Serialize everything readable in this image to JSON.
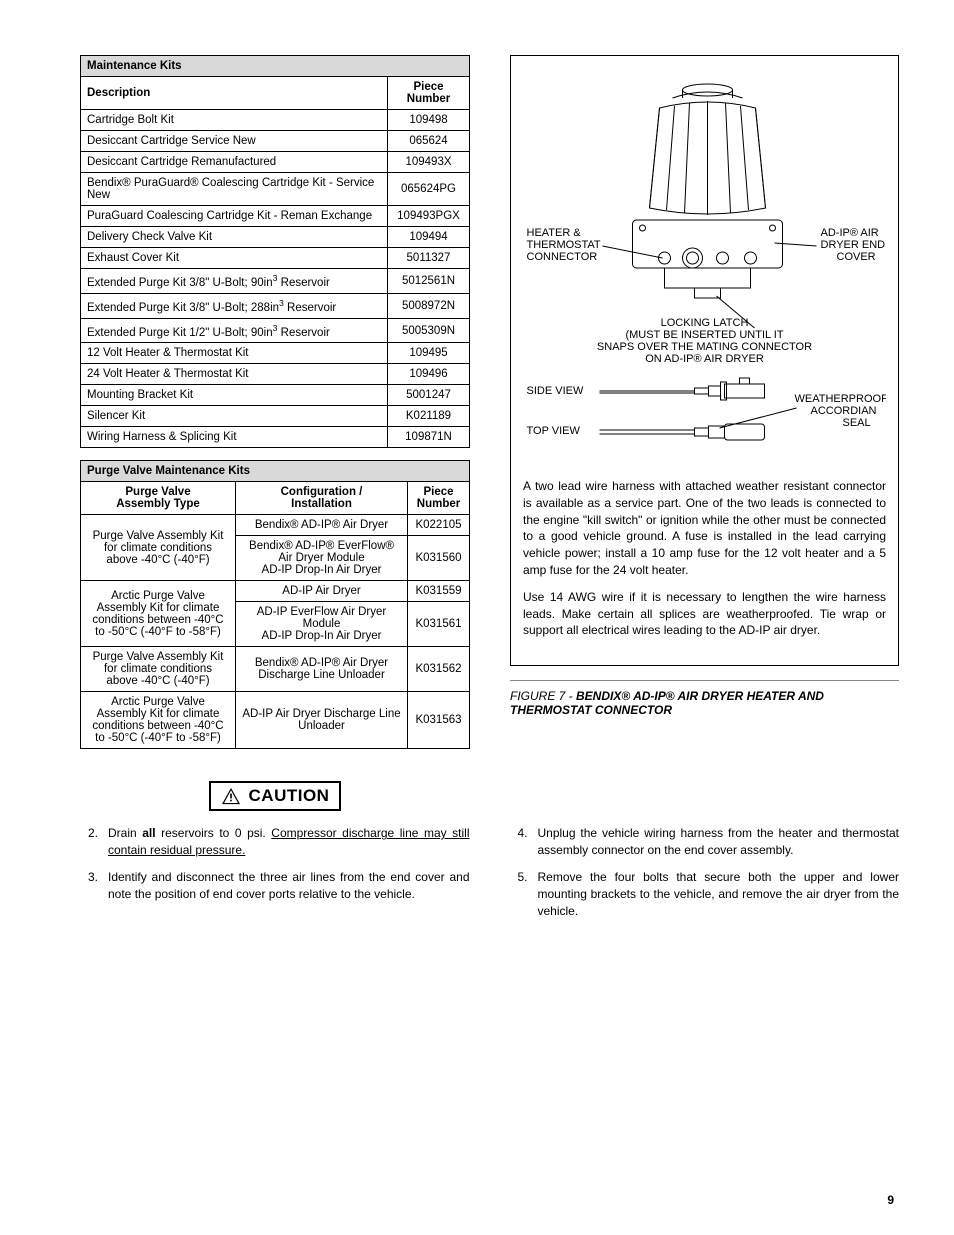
{
  "maintenanceTable": {
    "title": "Maintenance Kits",
    "col1": "Description",
    "col2": "Piece Number",
    "rows": [
      {
        "desc": "Cartridge Bolt Kit",
        "pn": "109498"
      },
      {
        "desc": "Desiccant Cartridge Service New",
        "pn": "065624"
      },
      {
        "desc": "Desiccant Cartridge Remanufactured",
        "pn": "109493X"
      },
      {
        "desc": "Bendix® PuraGuard® Coalescing Cartridge Kit - Service New",
        "pn": "065624PG"
      },
      {
        "desc": "PuraGuard Coalescing Cartridge Kit - Reman Exchange",
        "pn": "109493PGX"
      },
      {
        "desc": "Delivery Check Valve Kit",
        "pn": "109494"
      },
      {
        "desc": "Exhaust Cover Kit",
        "pn": "5011327"
      },
      {
        "desc": "Extended Purge Kit 3/8\" U-Bolt; 90in³ Reservoir",
        "pn": "5012561N"
      },
      {
        "desc": "Extended Purge Kit 3/8\" U-Bolt; 288in³ Reservoir",
        "pn": "5008972N"
      },
      {
        "desc": "Extended Purge Kit 1/2\" U-Bolt; 90in³ Reservoir",
        "pn": "5005309N"
      },
      {
        "desc": "12 Volt Heater & Thermostat Kit",
        "pn": "109495"
      },
      {
        "desc": "24 Volt Heater & Thermostat Kit",
        "pn": "109496"
      },
      {
        "desc": "Mounting Bracket Kit",
        "pn": "5001247"
      },
      {
        "desc": "Silencer Kit",
        "pn": "K021189"
      },
      {
        "desc": "Wiring Harness & Splicing Kit",
        "pn": "109871N"
      }
    ]
  },
  "purgeTable": {
    "title": "Purge Valve Maintenance Kits",
    "col1a": "Purge Valve",
    "col1b": "Assembly Type",
    "col2a": "Configuration /",
    "col2b": "Installation",
    "col3a": "Piece",
    "col3b": "Number",
    "groups": [
      {
        "assembly": "Purge Valve Assembly Kit for climate conditions above -40°C (-40°F)",
        "rows": [
          {
            "config": "Bendix® AD-IP® Air Dryer",
            "pn": "K022105"
          },
          {
            "config": "Bendix® AD-IP® EverFlow® Air Dryer Module\nAD-IP Drop-In Air Dryer",
            "pn": "K031560"
          }
        ]
      },
      {
        "assembly": "Arctic Purge Valve Assembly Kit for climate conditions between -40°C to -50°C (-40°F to -58°F)",
        "rows": [
          {
            "config": "AD-IP Air Dryer",
            "pn": "K031559"
          },
          {
            "config": "AD-IP EverFlow Air Dryer Module\nAD-IP Drop-In Air Dryer",
            "pn": "K031561"
          }
        ]
      },
      {
        "assembly": "Purge Valve Assembly Kit for climate conditions above -40°C (-40°F)",
        "rows": [
          {
            "config": "Bendix® AD-IP® Air Dryer Discharge Line Unloader",
            "pn": "K031562"
          }
        ]
      },
      {
        "assembly": "Arctic Purge Valve Assembly Kit for climate conditions between -40°C to -50°C (-40°F to -58°F)",
        "rows": [
          {
            "config": "AD-IP Air Dryer Discharge Line Unloader",
            "pn": "K031563"
          }
        ]
      }
    ]
  },
  "diagramLabels": {
    "heater": "HEATER & THERMOSTAT CONNECTOR",
    "cover": "AD-IP® AIR DRYER END COVER",
    "latch": "LOCKING LATCH (MUST BE INSERTED UNTIL IT SNAPS OVER THE MATING CONNECTOR ON AD-IP® AIR DRYER",
    "side": "SIDE VIEW",
    "top": "TOP VIEW",
    "seal": "WEATHERPROOF ACCORDIAN SEAL"
  },
  "bodyText": {
    "p1": "A two lead wire harness with attached weather resistant connector is available as a service part.  One of the two leads is connected to the engine \"kill switch\" or ignition while the other must be connected to a good vehicle ground.  A fuse is installed in the lead carrying vehicle power; install a 10 amp fuse for the 12 volt heater and a 5 amp fuse for the 24 volt heater.",
    "p2": "Use 14 AWG wire if it is necessary to lengthen the wire harness leads.  Make certain all splices are weatherproofed.  Tie wrap or support all electrical wires leading to the AD-IP air dryer."
  },
  "caption": {
    "pre": "FIGURE 7 - ",
    "main": "BENDIX® AD-IP® AIR DRYER HEATER AND THERMOSTAT CONNECTOR"
  },
  "caution": "CAUTION",
  "steps": {
    "s2a": "Drain ",
    "s2b": "all",
    "s2c": " reservoirs to 0 psi.  ",
    "s2d": "Compressor discharge line may still contain residual pressure.",
    "s3": "Identify and disconnect the three air lines from the end cover and note the position of end cover ports relative to the vehicle.",
    "s4": "Unplug the vehicle wiring harness from the heater and thermostat assembly connector on the end cover assembly.",
    "s5": "Remove the four bolts that secure both the upper and lower mounting brackets to the vehicle, and remove the air dryer from the vehicle."
  },
  "pageNum": "9"
}
